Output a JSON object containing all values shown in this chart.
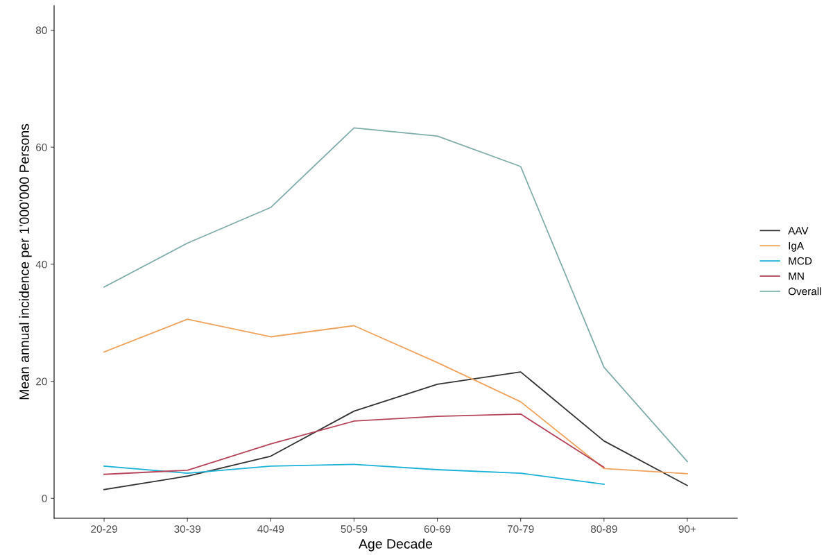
{
  "chart_data": {
    "type": "line",
    "xlabel": "Age Decade",
    "ylabel": "Mean annual incidence per 1'000'000 Persons",
    "categories": [
      "20-29",
      "30-39",
      "40-49",
      "50-59",
      "60-69",
      "70-79",
      "80-89",
      "90+"
    ],
    "series": [
      {
        "name": "AAV",
        "color": "#333333",
        "values": [
          1.5,
          3.8,
          7.2,
          14.9,
          19.5,
          21.6,
          9.8,
          2.2
        ]
      },
      {
        "name": "IgA",
        "color": "#f0a35e",
        "values": [
          25.0,
          30.6,
          27.6,
          29.5,
          23.2,
          16.5,
          5.1,
          4.2
        ]
      },
      {
        "name": "MCD",
        "color": "#1ab2d8",
        "values": [
          5.5,
          4.3,
          5.5,
          5.8,
          4.9,
          4.3,
          2.4,
          null
        ]
      },
      {
        "name": "MN",
        "color": "#b5435a",
        "values": [
          4.1,
          4.8,
          9.3,
          13.2,
          14.0,
          14.4,
          5.3,
          null
        ]
      },
      {
        "name": "Overall",
        "color": "#7fadaa",
        "values": [
          36.1,
          43.6,
          49.7,
          63.3,
          61.9,
          56.7,
          22.4,
          6.3
        ]
      }
    ],
    "ylim": [
      -3.4,
      84.2
    ],
    "yticks": [
      0,
      20,
      40,
      60,
      80
    ],
    "grid": false,
    "legend": "right",
    "marker": "none",
    "line_style": "solid"
  }
}
